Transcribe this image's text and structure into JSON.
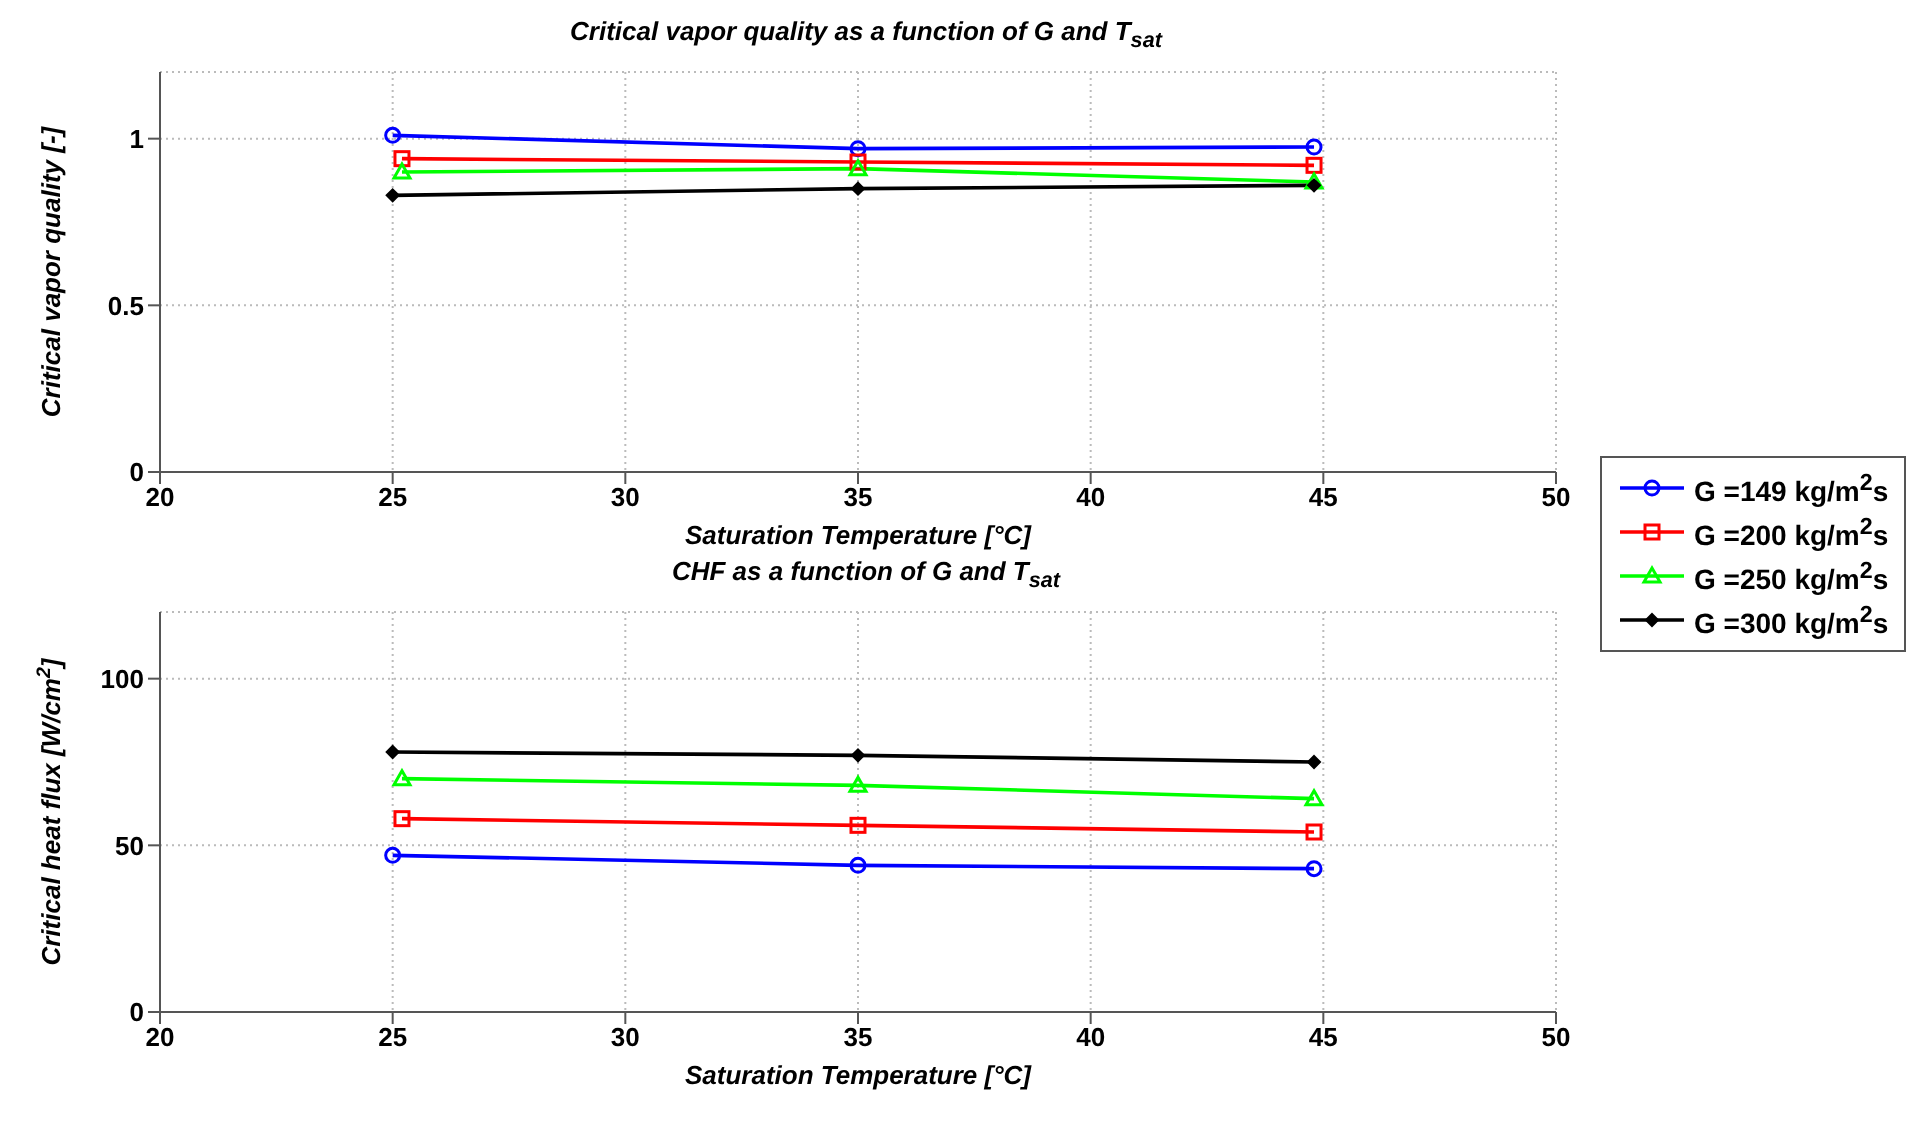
{
  "chart_data": [
    {
      "type": "line",
      "title": "Critical vapor quality as a function of G and T$_{sat}$",
      "xlabel": "Saturation Temperature [°C]",
      "ylabel": "Critical vapor quality [-]",
      "xlim": [
        20,
        50
      ],
      "xticks": [
        20,
        25,
        30,
        35,
        40,
        45,
        50
      ],
      "ylim": [
        0,
        1.2
      ],
      "yticks": [
        0,
        0.5,
        1
      ],
      "grid": true,
      "legend": "right",
      "series": [
        {
          "name": "G =149 kg/m$^{2}$s",
          "color": "#0000ff",
          "marker": "circle",
          "x": [
            25,
            35,
            44.8
          ],
          "values": [
            1.01,
            0.97,
            0.975
          ]
        },
        {
          "name": "G =200 kg/m$^{2}$s",
          "color": "#ff0000",
          "marker": "square",
          "x": [
            25.2,
            35,
            44.8
          ],
          "values": [
            0.94,
            0.93,
            0.92
          ]
        },
        {
          "name": "G =250 kg/m$^{2}$s",
          "color": "#00ff00",
          "marker": "triangle",
          "x": [
            25.2,
            35,
            44.8
          ],
          "values": [
            0.9,
            0.91,
            0.87
          ]
        },
        {
          "name": "G =300 kg/m$^{2}$s",
          "color": "#000000",
          "marker": "diamond",
          "x": [
            25,
            35,
            44.8
          ],
          "values": [
            0.83,
            0.85,
            0.86
          ]
        }
      ]
    },
    {
      "type": "line",
      "title": "CHF as a function of G and T$_{sat}$",
      "xlabel": "Saturation Temperature [°C]",
      "ylabel": "Critical heat flux [W/cm$^{2}$]",
      "xlim": [
        20,
        50
      ],
      "xticks": [
        20,
        25,
        30,
        35,
        40,
        45,
        50
      ],
      "ylim": [
        0,
        120
      ],
      "yticks": [
        0,
        50,
        100
      ],
      "grid": true,
      "series": [
        {
          "color": "#0000ff",
          "marker": "circle",
          "x": [
            25,
            35,
            44.8
          ],
          "values": [
            47,
            44,
            43
          ]
        },
        {
          "color": "#ff0000",
          "marker": "square",
          "x": [
            25.2,
            35,
            44.8
          ],
          "values": [
            58,
            56,
            54
          ]
        },
        {
          "color": "#00ff00",
          "marker": "triangle",
          "x": [
            25.2,
            35,
            44.8
          ],
          "values": [
            70,
            68,
            64
          ]
        },
        {
          "color": "#000000",
          "marker": "diamond",
          "x": [
            25,
            35,
            44.8
          ],
          "values": [
            78,
            77,
            75
          ]
        }
      ]
    }
  ]
}
